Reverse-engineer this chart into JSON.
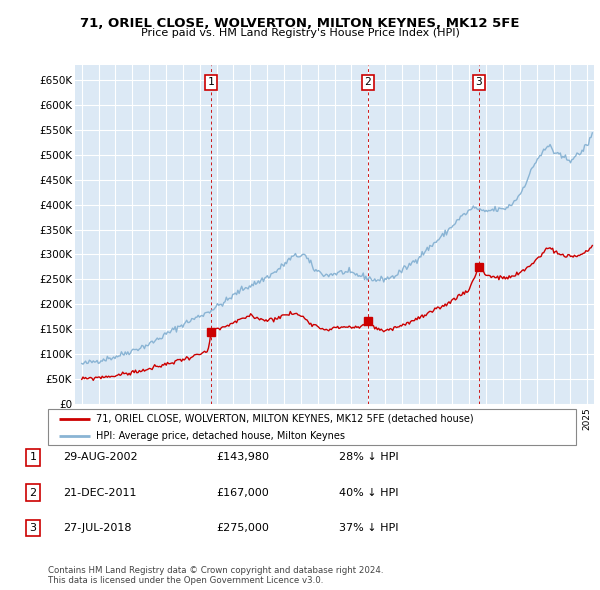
{
  "title": "71, ORIEL CLOSE, WOLVERTON, MILTON KEYNES, MK12 5FE",
  "subtitle": "Price paid vs. HM Land Registry's House Price Index (HPI)",
  "ylabel_ticks": [
    "£0",
    "£50K",
    "£100K",
    "£150K",
    "£200K",
    "£250K",
    "£300K",
    "£350K",
    "£400K",
    "£450K",
    "£500K",
    "£550K",
    "£600K",
    "£650K"
  ],
  "ylim": [
    0,
    680000
  ],
  "yticks": [
    0,
    50000,
    100000,
    150000,
    200000,
    250000,
    300000,
    350000,
    400000,
    450000,
    500000,
    550000,
    600000,
    650000
  ],
  "xlim_start": 1994.6,
  "xlim_end": 2025.4,
  "transactions": [
    {
      "num": 1,
      "date_num": 2002.66,
      "price": 143980,
      "label": "29-AUG-2002",
      "price_str": "£143,980",
      "hpi_diff": "28% ↓ HPI"
    },
    {
      "num": 2,
      "date_num": 2011.97,
      "price": 167000,
      "label": "21-DEC-2011",
      "price_str": "£167,000",
      "hpi_diff": "40% ↓ HPI"
    },
    {
      "num": 3,
      "date_num": 2018.56,
      "price": 275000,
      "label": "27-JUL-2018",
      "price_str": "£275,000",
      "hpi_diff": "37% ↓ HPI"
    }
  ],
  "hpi_color": "#8ab4d4",
  "price_color": "#cc0000",
  "marker_color": "#cc0000",
  "vline_color": "#cc0000",
  "plot_bg": "#dce9f5",
  "grid_color": "#ffffff",
  "legend_label_red": "71, ORIEL CLOSE, WOLVERTON, MILTON KEYNES, MK12 5FE (detached house)",
  "legend_label_blue": "HPI: Average price, detached house, Milton Keynes",
  "footnote": "Contains HM Land Registry data © Crown copyright and database right 2024.\nThis data is licensed under the Open Government Licence v3.0."
}
